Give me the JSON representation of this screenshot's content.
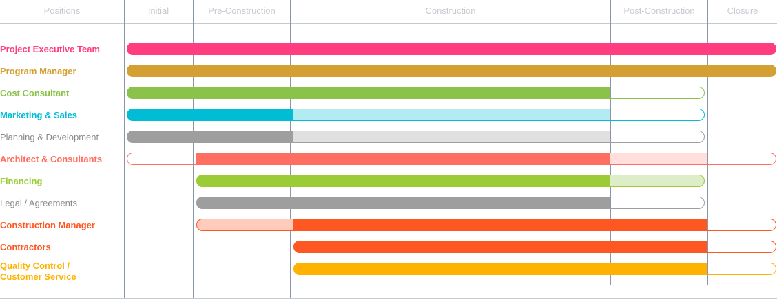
{
  "chart_data": {
    "type": "gantt",
    "phases": [
      "Initial",
      "Pre-Construction",
      "Construction",
      "Post-Construction",
      "Closure"
    ],
    "columns_header": "Positions",
    "rows": [
      {
        "label": [
          "Project Executive Team"
        ],
        "color": "#ff3d7f",
        "segments": [
          {
            "from": 0,
            "to": 5,
            "style": "solid"
          }
        ]
      },
      {
        "label": [
          "Program Manager"
        ],
        "color": "#d4a034",
        "segments": [
          {
            "from": 0,
            "to": 5,
            "style": "solid"
          }
        ]
      },
      {
        "label": [
          "Cost Consultant"
        ],
        "color": "#8bc34a",
        "segments": [
          {
            "from": 0,
            "to": 3,
            "style": "solid"
          },
          {
            "from": 3,
            "to": 4,
            "style": "outline"
          }
        ]
      },
      {
        "label": [
          "Marketing & Sales"
        ],
        "color": "#00bcd4",
        "segments": [
          {
            "from": 0,
            "to": 1.5,
            "style": "solid"
          },
          {
            "from": 1.5,
            "to": 3,
            "style": "light",
            "fill": "#b2ebf2"
          },
          {
            "from": 3,
            "to": 4,
            "style": "outline"
          }
        ]
      },
      {
        "label": [
          "Planning & Development"
        ],
        "color": "#9e9e9e",
        "segments": [
          {
            "from": 0,
            "to": 1.5,
            "style": "solid"
          },
          {
            "from": 1.5,
            "to": 3,
            "style": "light",
            "fill": "#e0e0e0"
          },
          {
            "from": 3,
            "to": 4,
            "style": "outline"
          }
        ]
      },
      {
        "label": [
          "Architect & Consultants"
        ],
        "color": "#ff6f61",
        "segments": [
          {
            "from": 0,
            "to": 0.5,
            "style": "outline"
          },
          {
            "from": 0.5,
            "to": 3,
            "style": "solid"
          },
          {
            "from": 3,
            "to": 4,
            "style": "light",
            "fill": "#ffdedb"
          },
          {
            "from": 4,
            "to": 5,
            "style": "outline"
          }
        ]
      },
      {
        "label": [
          "Financing"
        ],
        "color": "#9ccc35",
        "segments": [
          {
            "from": 0.5,
            "to": 3,
            "style": "solid"
          },
          {
            "from": 3,
            "to": 4,
            "style": "light",
            "fill": "#dcedc8"
          }
        ]
      },
      {
        "label": [
          "Legal / Agreements"
        ],
        "color": "#9e9e9e",
        "labelColor": "#8a8a8a",
        "segments": [
          {
            "from": 0.5,
            "to": 3,
            "style": "solid"
          },
          {
            "from": 3,
            "to": 4,
            "style": "outline"
          }
        ]
      },
      {
        "label": [
          "Construction Manager"
        ],
        "color": "#ff5722",
        "segments": [
          {
            "from": 0.5,
            "to": 1.5,
            "style": "light",
            "fill": "#ffccbc"
          },
          {
            "from": 1.5,
            "to": 4,
            "style": "solid"
          },
          {
            "from": 4,
            "to": 5,
            "style": "outline"
          }
        ]
      },
      {
        "label": [
          "Contractors"
        ],
        "color": "#ff5722",
        "segments": [
          {
            "from": 1.5,
            "to": 4,
            "style": "solid"
          },
          {
            "from": 4,
            "to": 5,
            "style": "outline"
          }
        ]
      },
      {
        "label": [
          "Quality Control /",
          "Customer Service"
        ],
        "color": "#ffb300",
        "segments": [
          {
            "from": 1.5,
            "to": 4,
            "style": "solid"
          },
          {
            "from": 4,
            "to": 5,
            "style": "outline"
          }
        ]
      }
    ]
  }
}
